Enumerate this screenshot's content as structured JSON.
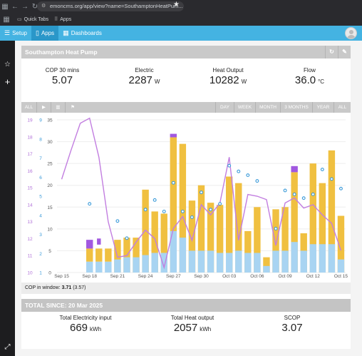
{
  "browser": {
    "url": "emoncms.org/app/view?name=SouthamptonHeatPum...",
    "bookmarks": [
      {
        "label": "Quick Tabs"
      },
      {
        "label": "Apps"
      }
    ]
  },
  "nav": {
    "setup": "Setup",
    "apps": "Apps",
    "dashboards": "Dashboards"
  },
  "app": {
    "title": "Southampton Heat Pump",
    "stats": [
      {
        "label": "COP 30 mins",
        "value": "5.07",
        "unit": ""
      },
      {
        "label": "Electric",
        "value": "2287",
        "unit": "W"
      },
      {
        "label": "Heat Output",
        "value": "10282",
        "unit": "W"
      },
      {
        "label": "Flow",
        "value": "36.0",
        "unit": "°C"
      }
    ],
    "chart_toolbar": {
      "all_left": "ALL",
      "ranges": [
        "DAY",
        "WEEK",
        "MONTH",
        "3 MONTHS",
        "YEAR",
        "ALL"
      ]
    },
    "cop_window": {
      "label": "COP in window:",
      "value": "3.71",
      "extra": "(3.57)"
    },
    "totals": {
      "title": "TOTAL SINCE: 20 Mar 2025",
      "items": [
        {
          "label": "Total Electricity input",
          "value": "669",
          "unit": "kWh"
        },
        {
          "label": "Total Heat output",
          "value": "2057",
          "unit": "kWh"
        },
        {
          "label": "SCOP",
          "value": "3.07",
          "unit": ""
        }
      ]
    }
  },
  "chart_data": {
    "type": "bar",
    "x": [
      "Sep 15",
      "Sep 16",
      "Sep 17",
      "Sep 18",
      "Sep 19",
      "Sep 20",
      "Sep 21",
      "Sep 22",
      "Sep 23",
      "Sep 24",
      "Sep 25",
      "Sep 26",
      "Sep 27",
      "Sep 28",
      "Sep 29",
      "Sep 30",
      "Oct 01",
      "Oct 02",
      "Oct 03",
      "Oct 04",
      "Oct 05",
      "Oct 06",
      "Oct 07",
      "Oct 08",
      "Oct 09",
      "Oct 10",
      "Oct 11",
      "Oct 12",
      "Oct 13",
      "Oct 14",
      "Oct 15"
    ],
    "x_tick_labels": [
      "Sep 15",
      "Sep 18",
      "Sep 21",
      "Sep 24",
      "Sep 27",
      "Sep 30",
      "Oct 03",
      "Oct 06",
      "Oct 09",
      "Oct 12",
      "Oct 15"
    ],
    "y_left_ticks": [
      0,
      5,
      10,
      15,
      20,
      25,
      30,
      35
    ],
    "y_mid_ticks": [
      1,
      2,
      3,
      4,
      5,
      6,
      7,
      8,
      9
    ],
    "y_outdoor_ticks": [
      10,
      11,
      12,
      13,
      14,
      15,
      16,
      17,
      18,
      19
    ],
    "ylim_left": [
      0,
      35
    ],
    "ylim_mid": [
      1,
      9
    ],
    "ylim_outdoor": [
      10,
      19
    ],
    "colors": {
      "heat": "#f0c040",
      "electric": "#a8d4f2",
      "cop": "#3a9ad9",
      "outdoor": "#c27ee0",
      "purple_cap": "#a158e0"
    },
    "series": [
      {
        "key": "heat",
        "values": [
          null,
          null,
          null,
          null,
          null,
          null,
          7.5,
          8,
          8,
          19,
          14,
          13.5,
          31,
          29.5,
          16.5,
          20,
          16,
          15.5,
          22,
          20.5,
          9.5,
          15,
          3.5,
          14.5,
          15,
          23,
          9,
          25,
          20.5,
          28,
          13
        ]
      },
      {
        "key": "heat_cap",
        "values": [
          null,
          null,
          null,
          null,
          null,
          null,
          0,
          0,
          0,
          0,
          0,
          0,
          0.8,
          0,
          0,
          0,
          0,
          0,
          0,
          0,
          0,
          0,
          0,
          0,
          0,
          1.4,
          0,
          0,
          0,
          0,
          0
        ]
      },
      {
        "key": "electric",
        "values": [
          null,
          null,
          null,
          2.5,
          2.5,
          2.5,
          3,
          3.5,
          3.5,
          4,
          4.5,
          4.5,
          9.5,
          8,
          5,
          5,
          5,
          4.5,
          4.5,
          5,
          4.5,
          4.5,
          1.5,
          5,
          5,
          7,
          5,
          6.5,
          6.5,
          6.5,
          3
        ]
      },
      {
        "key": "cop",
        "values": [
          null,
          null,
          null,
          4.6,
          null,
          null,
          3.7,
          2.8,
          null,
          4.3,
          4.8,
          4.2,
          5.7,
          4.2,
          3.9,
          5.2,
          4.3,
          4.6,
          6.6,
          6.3,
          6.1,
          5.8,
          null,
          3.3,
          5.3,
          5.1,
          4.9,
          5.1,
          6.4,
          5.9,
          5.4
        ]
      },
      {
        "key": "outdoor",
        "values": [
          15.5,
          17.2,
          18.8,
          19.1,
          16.8,
          13.0,
          10.9,
          11.0,
          11.8,
          12.5,
          12.0,
          10.3,
          12.6,
          13.3,
          11.9,
          14.0,
          13.4,
          14.1,
          16.8,
          11.9,
          14.6,
          14.5,
          14.3,
          11.6,
          14.1,
          14.4,
          13.8,
          14.0,
          13.4,
          12.9,
          11.3
        ]
      },
      {
        "key": "purple_squares",
        "values": [
          null,
          null,
          null,
          1.0,
          null,
          null,
          null,
          null,
          null,
          null,
          null,
          null,
          0.8,
          null,
          null,
          null,
          null,
          null,
          null,
          null,
          null,
          null,
          null,
          null,
          null,
          1.4,
          null,
          null,
          null,
          null,
          null
        ]
      }
    ]
  }
}
